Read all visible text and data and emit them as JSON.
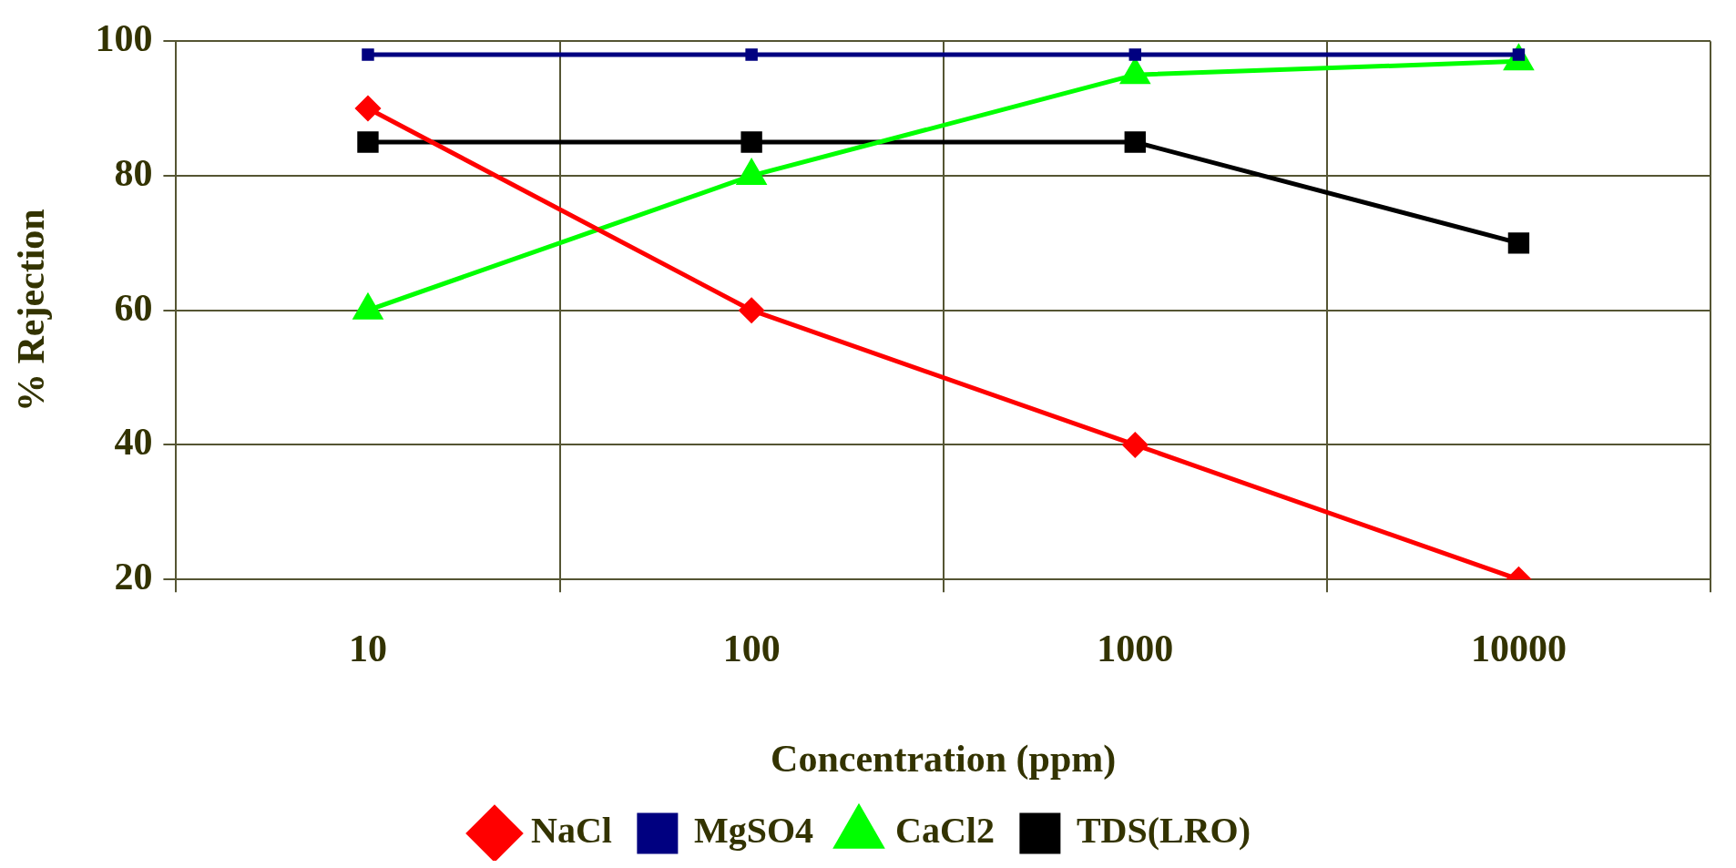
{
  "chart_data": {
    "type": "line",
    "xlabel": "Concentration (ppm)",
    "ylabel": "% Rejection",
    "categories": [
      "10",
      "100",
      "1000",
      "10000"
    ],
    "series": [
      {
        "name": "NaCl",
        "color": "#ff0000",
        "marker": "diamond",
        "values": [
          90,
          60,
          40,
          20
        ]
      },
      {
        "name": "MgSO4",
        "color": "#000080",
        "marker": "square",
        "values": [
          98,
          98,
          98,
          98
        ]
      },
      {
        "name": "CaCl2",
        "color": "#00ff00",
        "marker": "triangle",
        "values": [
          60,
          80,
          95,
          97
        ]
      },
      {
        "name": "TDS(LRO)",
        "color": "#000000",
        "marker": "square",
        "values": [
          85,
          85,
          85,
          70
        ]
      }
    ],
    "ylim": [
      20,
      100
    ],
    "yticks": [
      20,
      40,
      60,
      80,
      100
    ],
    "grid": true,
    "legend": "bottom",
    "line_style": "solid"
  }
}
